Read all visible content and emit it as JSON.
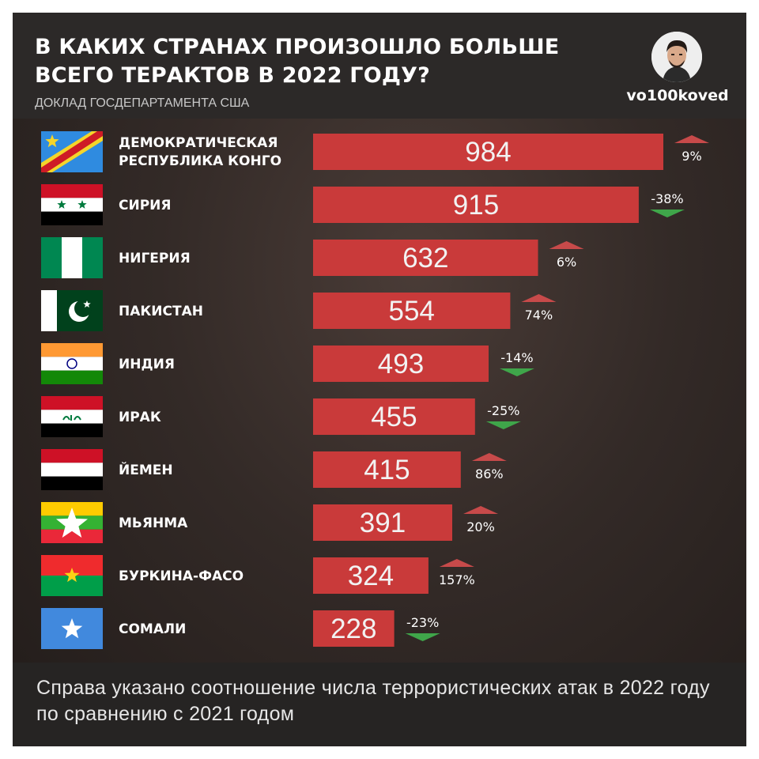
{
  "header": {
    "title": "В КАКИХ СТРАНАХ ПРОИЗОШЛО БОЛЬШЕ ВСЕГО ТЕРАКТОВ В 2022 ГОДУ?",
    "subtitle": "ДОКЛАД ГОСДЕПАРТАМЕНТА США",
    "author_handle": "vo100koved"
  },
  "footer": {
    "note": "Справа указано соотношение числа террористических атак в 2022 году по сравнению с 2021 годом"
  },
  "colors": {
    "bar": "#c93a3a",
    "increase_arrow": "#c74a4a",
    "decrease_arrow": "#3fa64a",
    "background": "#2c2928"
  },
  "chart_data": {
    "type": "bar",
    "orientation": "horizontal",
    "title": "В КАКИХ СТРАНАХ ПРОИЗОШЛО БОЛЬШЕ ВСЕГО ТЕРАКТОВ В 2022 ГОДУ?",
    "xlabel": "",
    "ylabel": "",
    "grid": false,
    "legend": "none",
    "categories": [
      [
        "ДЕМОКРАТИЧЕСКАЯ",
        "РЕСПУБЛИКА КОНГО"
      ],
      [
        "СИРИЯ"
      ],
      [
        "НИГЕРИЯ"
      ],
      [
        "ПАКИСТАН"
      ],
      [
        "ИНДИЯ"
      ],
      [
        "ИРАК"
      ],
      [
        "ЙЕМЕН"
      ],
      [
        "МЬЯНМА"
      ],
      [
        "БУРКИНА-ФАСО"
      ],
      [
        "СОМАЛИ"
      ]
    ],
    "flags": [
      "flag-dr-congo-icon",
      "flag-syria-icon",
      "flag-nigeria-icon",
      "flag-pakistan-icon",
      "flag-india-icon",
      "flag-iraq-icon",
      "flag-yemen-icon",
      "flag-myanmar-icon",
      "flag-burkina-faso-icon",
      "flag-somalia-icon"
    ],
    "values": [
      984,
      915,
      632,
      554,
      493,
      455,
      415,
      391,
      324,
      228
    ],
    "value_labels": [
      "984",
      "915",
      "632",
      "554",
      "493",
      "455",
      "415",
      "391",
      "324",
      "228"
    ],
    "change_labels": [
      "9%",
      "-38%",
      "6%",
      "74%",
      "-14%",
      "-25%",
      "86%",
      "20%",
      "157%",
      "-23%"
    ],
    "change_direction": [
      "up",
      "down",
      "up",
      "up",
      "down",
      "down",
      "up",
      "up",
      "up",
      "down"
    ]
  }
}
